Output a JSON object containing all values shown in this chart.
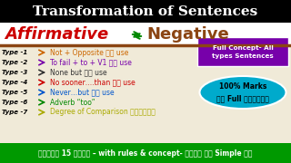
{
  "title": "Transformation of Sentences",
  "title_bg": "#000000",
  "title_color": "#ffffff",
  "subtitle_left": "Affirmative",
  "subtitle_right": "Negative",
  "subtitle_left_color": "#cc0000",
  "subtitle_arrow_color": "#008800",
  "subtitle_right_color": "#8B4513",
  "underline_color": "#8B4513",
  "types": [
    {
      "label": "Type -1",
      "arrow_color": "#cc6600",
      "text": "Not + Opposite का use",
      "text_color": "#cc6600"
    },
    {
      "label": "Type -2",
      "arrow_color": "#7700aa",
      "text": "To fail + to + V1 का use",
      "text_color": "#7700aa"
    },
    {
      "label": "Type -3",
      "arrow_color": "#333333",
      "text": "None but का use",
      "text_color": "#333333"
    },
    {
      "label": "Type -4",
      "arrow_color": "#cc0000",
      "text": "No sooner….than का use",
      "text_color": "#cc0000"
    },
    {
      "label": "Type -5",
      "arrow_color": "#0055cc",
      "text": "Never…but का use",
      "text_color": "#0055cc"
    },
    {
      "label": "Type -6",
      "arrow_color": "#008800",
      "text": "Adverb “too”",
      "text_color": "#008800"
    },
    {
      "label": "Type -7",
      "arrow_color": "#aaaa00",
      "text": "Degree of Comparison द्वारा",
      "text_color": "#aaaa00"
    }
  ],
  "box1_bg": "#7700aa",
  "box1_text": "Full Concept- All\ntypes Sentences",
  "box1_color": "#ffffff",
  "box2_bg": "#00aacc",
  "box2_text": "100% Marks\nकी Full गारंटी",
  "box2_color": "#000000",
  "footer_bg": "#009900",
  "footer_text": "सिर्फ 15 मिनट – with rules & concept- बहुत ही Simple है",
  "footer_color": "#ffffff",
  "main_bg": "#f0ead8"
}
